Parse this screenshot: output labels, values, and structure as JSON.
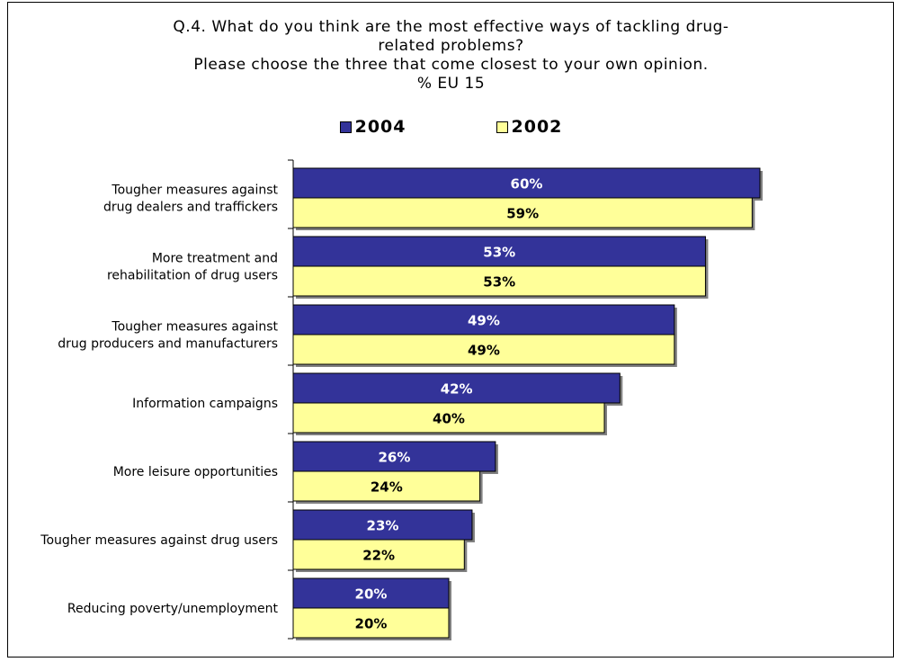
{
  "chart_data": {
    "type": "bar",
    "orientation": "horizontal",
    "title_lines": [
      "Q.4. What do you think are the most effective ways of tackling drug-",
      "related problems?",
      "Please choose the three that come closest to your own opinion.",
      "% EU 15"
    ],
    "categories": [
      [
        "Tougher measures against",
        "drug dealers and traffickers"
      ],
      [
        "More treatment and",
        "rehabilitation of drug users"
      ],
      [
        "Tougher measures against",
        "drug producers and manufacturers"
      ],
      [
        "Information campaigns"
      ],
      [
        "More leisure opportunities"
      ],
      [
        "Tougher measures against drug users"
      ],
      [
        "Reducing poverty/unemployment"
      ]
    ],
    "series": [
      {
        "name": "2004",
        "values": [
          60,
          53,
          49,
          42,
          26,
          23,
          20
        ],
        "labels": [
          "60%",
          "53%",
          "49%",
          "42%",
          "26%",
          "23%",
          "20%"
        ],
        "color": "#333399",
        "label_color": "#ffffff"
      },
      {
        "name": "2002",
        "values": [
          59,
          53,
          49,
          40,
          24,
          22,
          20
        ],
        "labels": [
          "59%",
          "53%",
          "49%",
          "40%",
          "24%",
          "22%",
          "20%"
        ],
        "color": "#ffff99",
        "label_color": "#000000"
      }
    ],
    "xlim": [
      0,
      60
    ],
    "legend_position": "top",
    "grid": false
  }
}
